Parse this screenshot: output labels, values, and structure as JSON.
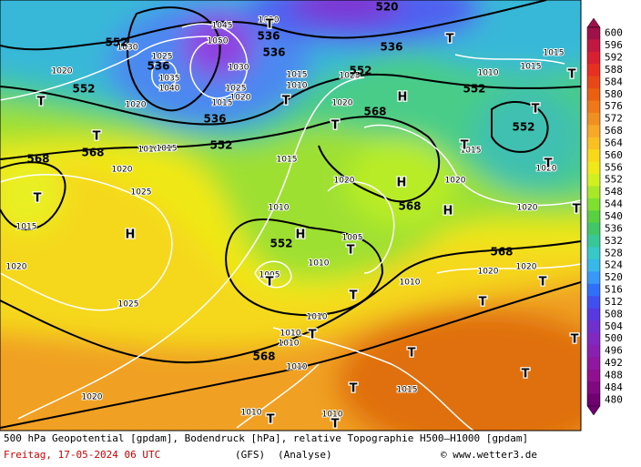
{
  "map": {
    "contour_labels_gpdam": [
      520,
      536,
      536,
      552,
      536,
      552,
      536,
      552,
      536,
      552,
      568,
      552,
      552,
      568,
      568,
      568,
      552,
      568,
      568
    ],
    "isobar_labels_hpa": [
      1030,
      1025,
      1035,
      1040,
      1020,
      1020,
      1045,
      1050,
      1030,
      1025,
      1020,
      1015,
      1015,
      1010,
      1020,
      1025,
      1020,
      1010,
      1015,
      1015,
      1015,
      1010,
      1015,
      1020,
      1025,
      1015,
      1020,
      1025,
      1020,
      1010,
      1020,
      1005,
      1010,
      1005,
      1010,
      1010,
      1010,
      1010,
      1010,
      1015,
      1010,
      1010,
      1020,
      1020,
      1020,
      1020,
      1015,
      1020
    ],
    "pressure_centers": [
      "T",
      "H",
      "T",
      "T",
      "T",
      "T",
      "T",
      "T",
      "T",
      "T",
      "T",
      "T",
      "T",
      "H",
      "H",
      "H",
      "H",
      "T",
      "T",
      "T",
      "T",
      "T",
      "T",
      "T",
      "T",
      "T",
      "T",
      "T",
      "T"
    ]
  },
  "colorbar": {
    "values": [
      600,
      596,
      592,
      588,
      584,
      580,
      576,
      572,
      568,
      564,
      560,
      556,
      552,
      548,
      544,
      540,
      536,
      532,
      528,
      524,
      520,
      516,
      512,
      508,
      504,
      500,
      496,
      492,
      488,
      484,
      480
    ],
    "colors": [
      "#a0104a",
      "#c01840",
      "#d82030",
      "#e83020",
      "#e84818",
      "#e86010",
      "#f07818",
      "#f09020",
      "#f8a828",
      "#f8c020",
      "#f8d818",
      "#f0e818",
      "#d0f020",
      "#a8e828",
      "#80e030",
      "#58d040",
      "#40c868",
      "#38c898",
      "#38c8c8",
      "#38b8e8",
      "#3898f8",
      "#3070f8",
      "#4050f0",
      "#5838e0",
      "#7030d0",
      "#8028c0",
      "#8820b0",
      "#9018a0",
      "#901090",
      "#800880",
      "#700070"
    ]
  },
  "footer": {
    "caption": "500 hPa Geopotential [gpdam], Bodendruck [hPa], relative Topographie H500—H1000 [gpdam]",
    "date": "Freitag, 17-05-2024  06 UTC",
    "model": "(GFS)",
    "run": "(Analyse)",
    "credit": "© www.wetter3.de"
  }
}
